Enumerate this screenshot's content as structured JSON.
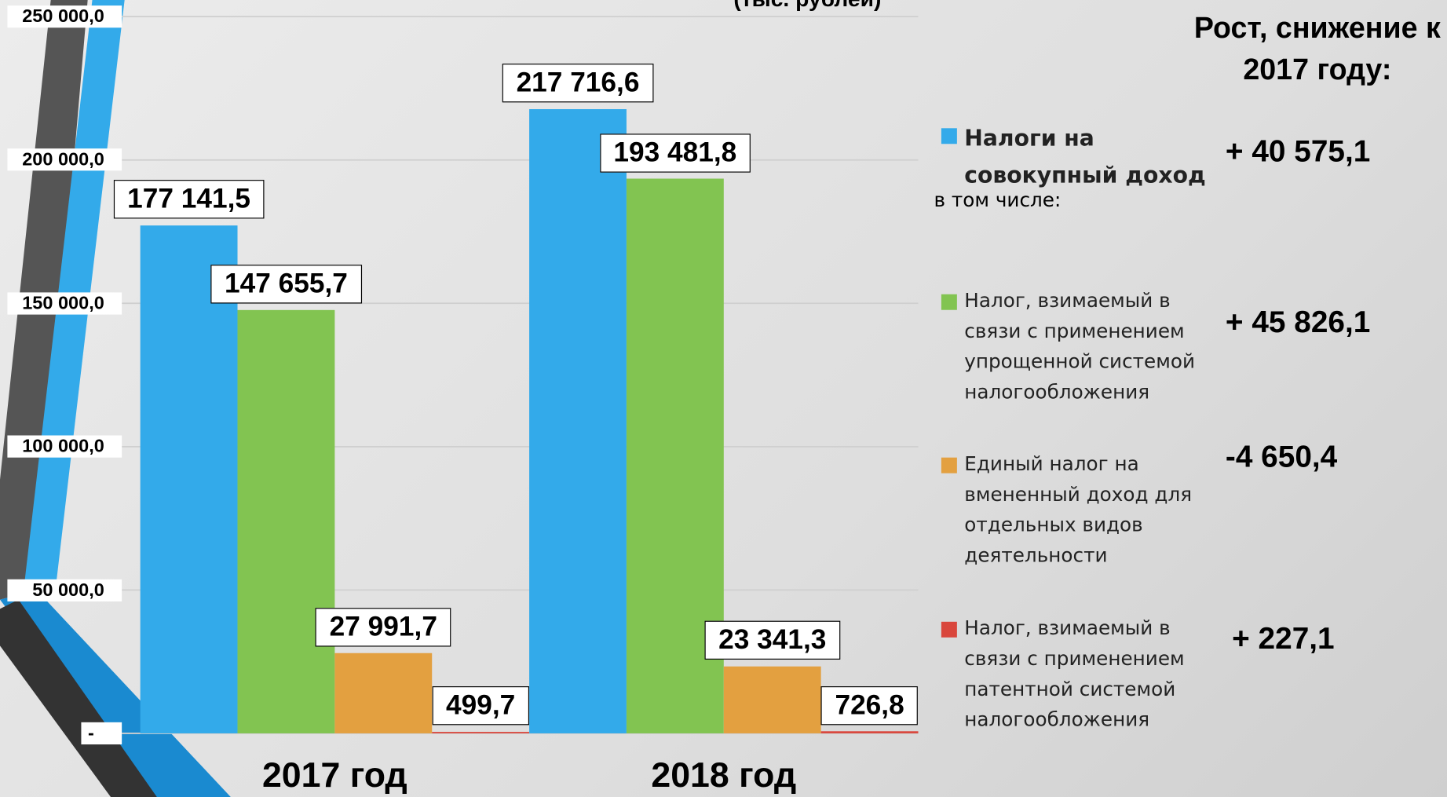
{
  "chart_data": {
    "type": "bar",
    "subtitle": "(тыс. рублей)",
    "categories": [
      "2017 год",
      "2018 год"
    ],
    "series": [
      {
        "name": "Налоги на совокупный доход",
        "color": "#33aaea",
        "values": [
          177141.5,
          217716.6
        ],
        "value_labels": [
          "177 141,5",
          "217 716,6"
        ]
      },
      {
        "name": "Налог, взимаемый в связи с применением упрощенной системой налогообложения",
        "color": "#82c451",
        "values": [
          147655.7,
          193481.8
        ],
        "value_labels": [
          "147 655,7",
          "193 481,8"
        ]
      },
      {
        "name": "Единый налог на вмененный доход для отдельных видов деятельности",
        "color": "#e3a040",
        "values": [
          27991.7,
          23341.3
        ],
        "value_labels": [
          "27 991,7",
          "23 341,3"
        ]
      },
      {
        "name": "Налог, взимаемый в связи с применением патентной системой налогообложения",
        "color": "#d9463c",
        "values": [
          499.7,
          726.8
        ],
        "value_labels": [
          "499,7",
          "726,8"
        ]
      }
    ],
    "ylim": [
      0,
      250000
    ],
    "yticks": [
      {
        "value": 0,
        "label": "-"
      },
      {
        "value": 50000,
        "label": "50 000,0"
      },
      {
        "value": 100000,
        "label": "100 000,0"
      },
      {
        "value": 150000,
        "label": "150 000,0"
      },
      {
        "value": 200000,
        "label": "200 000,0"
      },
      {
        "value": 250000,
        "label": "250 000,0"
      }
    ],
    "grid": true,
    "legend_note": "в том числе:",
    "changes_title": "Рост, снижение к 2017 году:",
    "changes": [
      "+ 40 575,1",
      "+ 45 826,1",
      "-4 650,4",
      "+ 227,1"
    ]
  }
}
